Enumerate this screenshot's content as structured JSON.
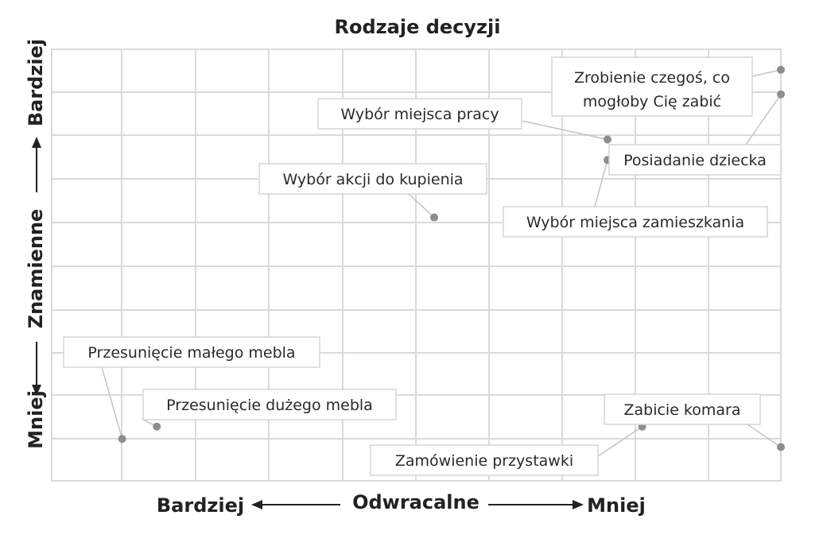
{
  "chart_data": {
    "type": "scatter",
    "title": "Rodzaje decyzji",
    "xlabel": "Odwracalne",
    "ylabel": "Znamienne",
    "x_axis": {
      "low_end": "Bardziej",
      "high_end": "Mniej"
    },
    "y_axis": {
      "low_end": "Mniej",
      "high_end": "Bardziej"
    },
    "xlim": [
      0,
      10
    ],
    "ylim": [
      0,
      10
    ],
    "grid": true,
    "points": [
      {
        "label": "Przesunięcie małego mebla",
        "x": 0.5,
        "y": 0.5
      },
      {
        "label": "Przesunięcie dużego mebla",
        "x": 1.0,
        "y": 0.8
      },
      {
        "label": "Wybór akcji do kupienia",
        "x": 5.0,
        "y": 5.9
      },
      {
        "label": "Wybór miejsca pracy",
        "x": 7.5,
        "y": 7.8
      },
      {
        "label": "Wybór miejsca zamieszkania",
        "x": 7.5,
        "y": 7.3
      },
      {
        "label": "Posiadanie dziecka",
        "x": 10.0,
        "y": 8.9
      },
      {
        "label": "Zrobienie czegoś, co mogłoby Cię zabić",
        "x": 10.0,
        "y": 9.5
      },
      {
        "label": "Zamówienie przystawki",
        "x": 8.0,
        "y": 0.8
      },
      {
        "label": "Zabicie komara",
        "x": 10.0,
        "y": 0.3
      }
    ]
  },
  "colors": {
    "grid": "#dadada",
    "point": "#8d8d8d",
    "text": "#222222"
  }
}
